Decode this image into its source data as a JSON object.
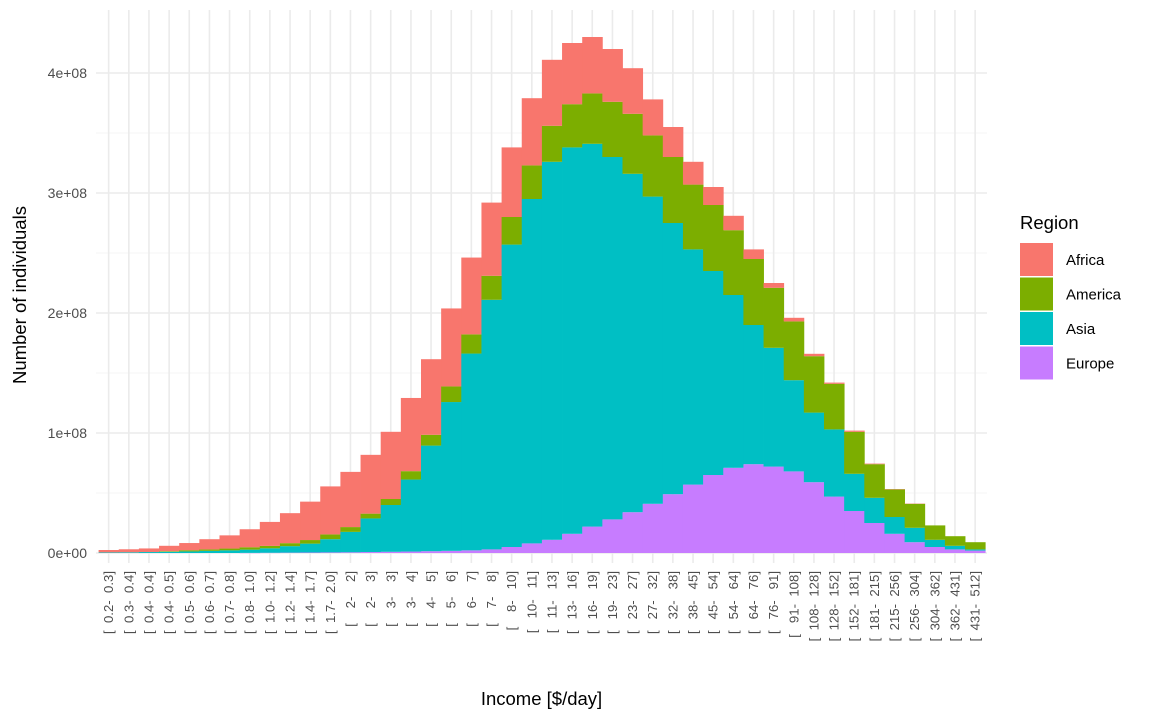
{
  "chart_data": {
    "type": "bar",
    "stacked": true,
    "title": "",
    "xlabel": "Income [$/day]",
    "ylabel": "Number of individuals",
    "ylim": [
      0,
      450000000
    ],
    "yticks": [
      0,
      100000000,
      200000000,
      300000000,
      400000000
    ],
    "ytick_labels": [
      "0e+00",
      "1e+08",
      "2e+08",
      "3e+08",
      "4e+08"
    ],
    "grid": true,
    "legend": {
      "title": "Region",
      "position": "right"
    },
    "categories": [
      "[  0.2-  0.3]",
      "[  0.3-  0.4]",
      "[  0.4-  0.4]",
      "[  0.4-  0.5]",
      "[  0.5-  0.6]",
      "[  0.6-  0.7]",
      "[  0.7-  0.8]",
      "[  0.8-  1.0]",
      "[  1.0-  1.2]",
      "[  1.2-  1.4]",
      "[  1.4-  1.7]",
      "[  1.7-  2.0]",
      "[    2-    2]",
      "[    2-    3]",
      "[    3-    3]",
      "[    3-    4]",
      "[    4-    5]",
      "[    5-    6]",
      "[    6-    7]",
      "[    7-    8]",
      "[    8-   10]",
      "[   10-   11]",
      "[   11-   13]",
      "[   13-   16]",
      "[   16-   19]",
      "[   19-   23]",
      "[   23-   27]",
      "[   27-   32]",
      "[   32-   38]",
      "[   38-   45]",
      "[   45-   54]",
      "[   54-   64]",
      "[   64-   76]",
      "[   76-   91]",
      "[   91-  108]",
      "[  108-  128]",
      "[  128-  152]",
      "[  152-  181]",
      "[  181-  215]",
      "[  215-  256]",
      "[  256-  304]",
      "[  304-  362]",
      "[  362-  431]",
      "[  431-  512]"
    ],
    "series": [
      {
        "name": "Africa",
        "color": "#F8766D",
        "values": [
          2000000,
          2500000,
          3000000,
          4500000,
          6000000,
          8500000,
          11000000,
          15000000,
          20000000,
          25000000,
          32000000,
          40000000,
          46000000,
          49000000,
          56000000,
          61000000,
          63000000,
          65000000,
          64000000,
          61000000,
          58000000,
          56000000,
          55000000,
          51000000,
          47000000,
          44000000,
          38000000,
          30000000,
          25000000,
          19000000,
          15000000,
          12000000,
          8000000,
          4000000,
          3000000,
          2000000,
          1000000,
          1000000,
          500000,
          300000,
          200000,
          0,
          0,
          0
        ]
      },
      {
        "name": "America",
        "color": "#7CAE00",
        "values": [
          0,
          0,
          0,
          500000,
          1000000,
          1200000,
          1500000,
          2000000,
          2000000,
          2500000,
          3000000,
          4000000,
          4000000,
          4000000,
          5000000,
          7000000,
          9000000,
          13000000,
          16000000,
          20000000,
          23000000,
          28000000,
          30000000,
          36000000,
          42000000,
          46000000,
          50000000,
          51000000,
          55000000,
          54000000,
          55000000,
          54000000,
          55000000,
          50000000,
          49000000,
          47000000,
          38000000,
          35000000,
          28000000,
          23000000,
          20000000,
          12000000,
          8000000,
          6000000
        ]
      },
      {
        "name": "Asia",
        "color": "#00BFC4",
        "values": [
          500000,
          600000,
          800000,
          1000000,
          1300000,
          1800000,
          2200000,
          2700000,
          3700000,
          5400000,
          7400000,
          11000000,
          17000000,
          28000000,
          39000000,
          60000000,
          88000000,
          124000000,
          164000000,
          208000000,
          252000000,
          287000000,
          315000000,
          322000000,
          319000000,
          302000000,
          282000000,
          256000000,
          226000000,
          196000000,
          170000000,
          144000000,
          116000000,
          99000000,
          76000000,
          58000000,
          56000000,
          31000000,
          21000000,
          14000000,
          12000000,
          6000000,
          3000000,
          1000000
        ]
      },
      {
        "name": "Europe",
        "color": "#C77CFF",
        "values": [
          0,
          0,
          0,
          0,
          0,
          0,
          0,
          100000,
          200000,
          300000,
          400000,
          500000,
          600000,
          800000,
          1000000,
          1200000,
          1500000,
          1800000,
          2200000,
          3000000,
          5000000,
          8000000,
          11000000,
          16000000,
          22000000,
          28000000,
          34000000,
          41000000,
          49000000,
          57000000,
          65000000,
          71000000,
          74000000,
          72000000,
          68000000,
          59000000,
          47000000,
          35000000,
          25000000,
          16000000,
          9000000,
          5000000,
          3000000,
          2000000
        ]
      }
    ]
  }
}
